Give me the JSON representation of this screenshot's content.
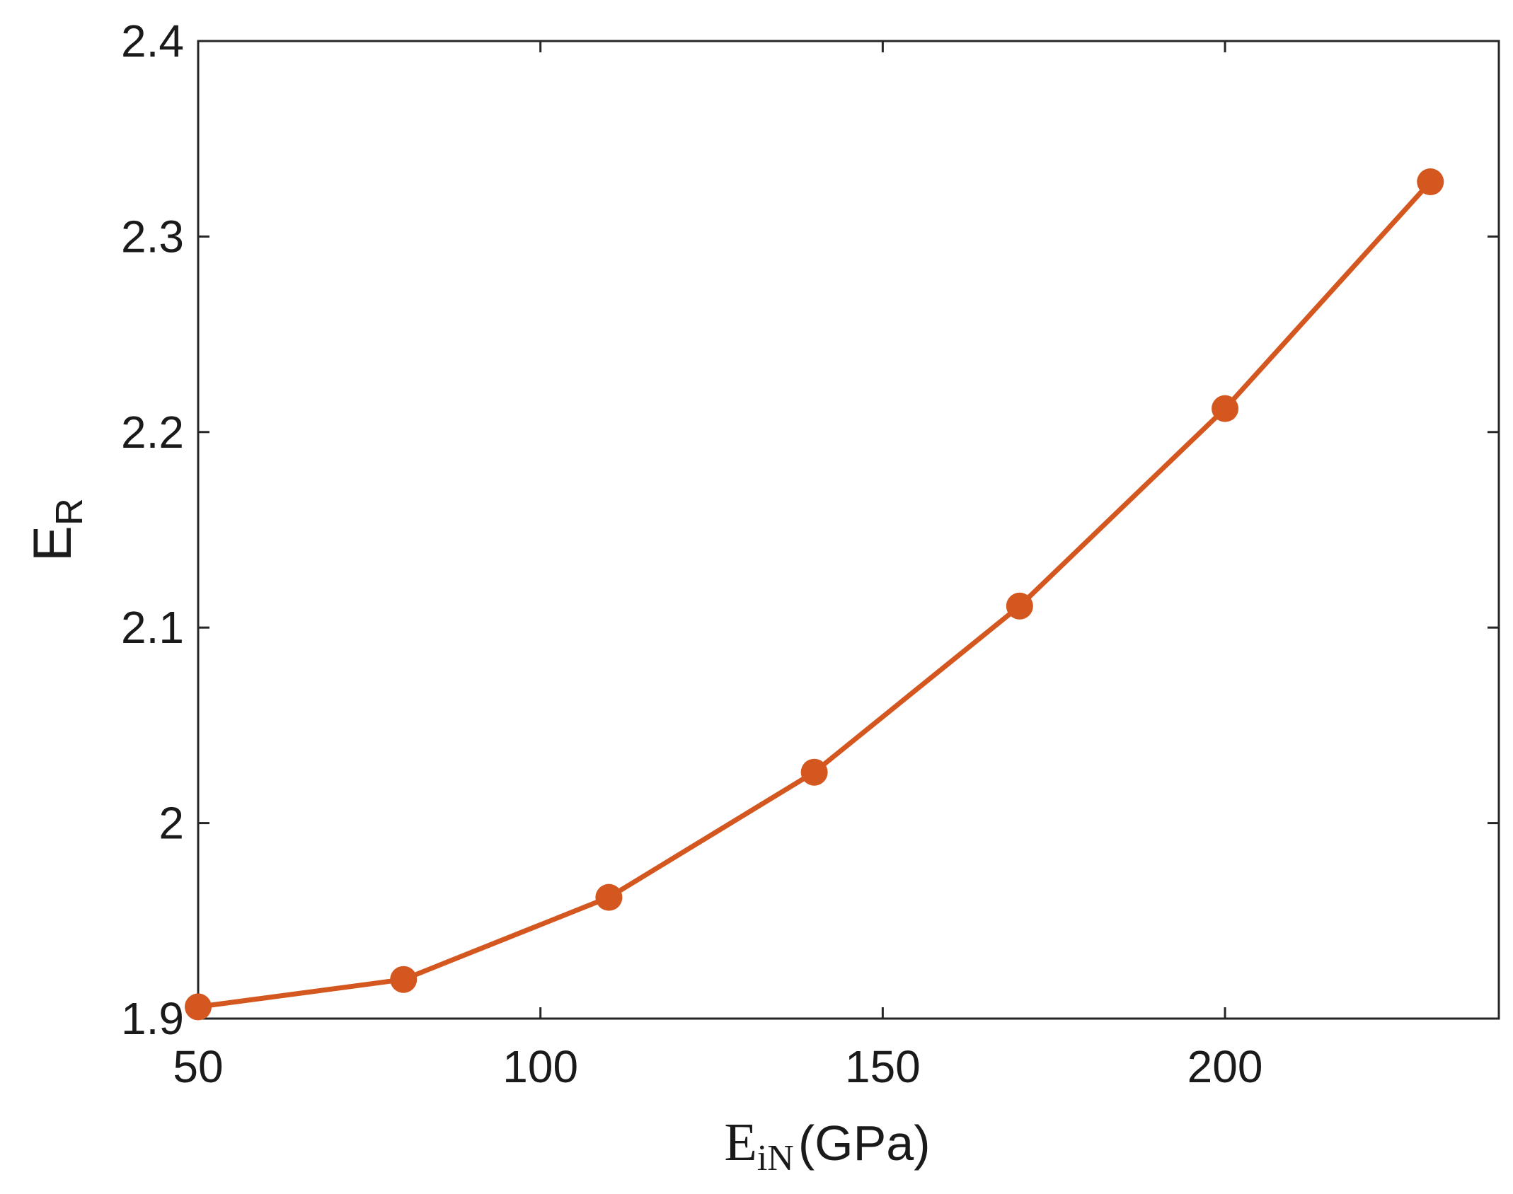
{
  "chart_data": {
    "type": "line",
    "x": [
      50,
      80,
      110,
      140,
      170,
      200,
      230
    ],
    "series": [
      {
        "values": [
          1.906,
          1.92,
          1.962,
          2.026,
          2.111,
          2.212,
          2.328
        ],
        "color": "#D4571F",
        "marker": "circle"
      }
    ],
    "xlabel": {
      "main": "E",
      "subscript": "iN",
      "unit": "(GPa)"
    },
    "ylabel": {
      "main": "E",
      "subscript": "R"
    },
    "xlim": [
      50,
      240
    ],
    "ylim": [
      1.9,
      2.4
    ],
    "xticks": [
      "50",
      "100",
      "150",
      "200"
    ],
    "xtick_values": [
      50,
      100,
      150,
      200
    ],
    "yticks": [
      "1.9",
      "2",
      "2.1",
      "2.2",
      "2.3",
      "2.4"
    ],
    "ytick_values": [
      1.9,
      2.0,
      2.1,
      2.2,
      2.3,
      2.4
    ],
    "grid": false,
    "legend": "none"
  }
}
